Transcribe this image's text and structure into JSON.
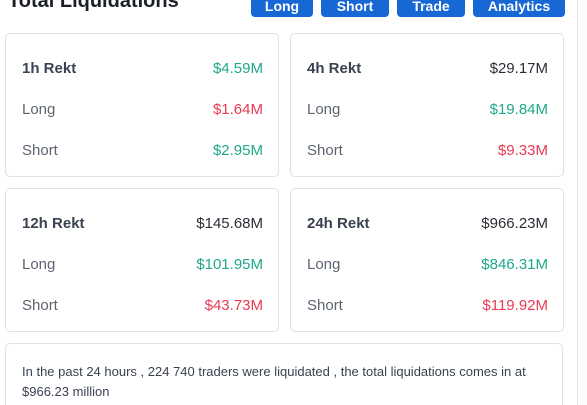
{
  "header": {
    "title": "Total Liquidations",
    "buttons": {
      "long": "Long",
      "short": "Short",
      "trade": "Trade",
      "analytics": "Analytics"
    }
  },
  "cards": {
    "h1": {
      "title": "1h Rekt",
      "total": "$4.59M",
      "long_label": "Long",
      "long": "$1.64M",
      "short_label": "Short",
      "short": "$2.95M"
    },
    "h4": {
      "title": "4h Rekt",
      "total": "$29.17M",
      "long_label": "Long",
      "long": "$19.84M",
      "short_label": "Short",
      "short": "$9.33M"
    },
    "h12": {
      "title": "12h Rekt",
      "total": "$145.68M",
      "long_label": "Long",
      "long": "$101.95M",
      "short_label": "Short",
      "short": "$43.73M"
    },
    "h24": {
      "title": "24h Rekt",
      "total": "$966.23M",
      "long_label": "Long",
      "long": "$846.31M",
      "short_label": "Short",
      "short": "$119.92M"
    }
  },
  "summary": {
    "text": "In the past 24 hours , 224 740 traders were liquidated , the total liquidations comes in at $966.23 million"
  },
  "colors": {
    "accent": "#1767d4",
    "green": "#1fa88a",
    "red": "#ea3a52"
  }
}
